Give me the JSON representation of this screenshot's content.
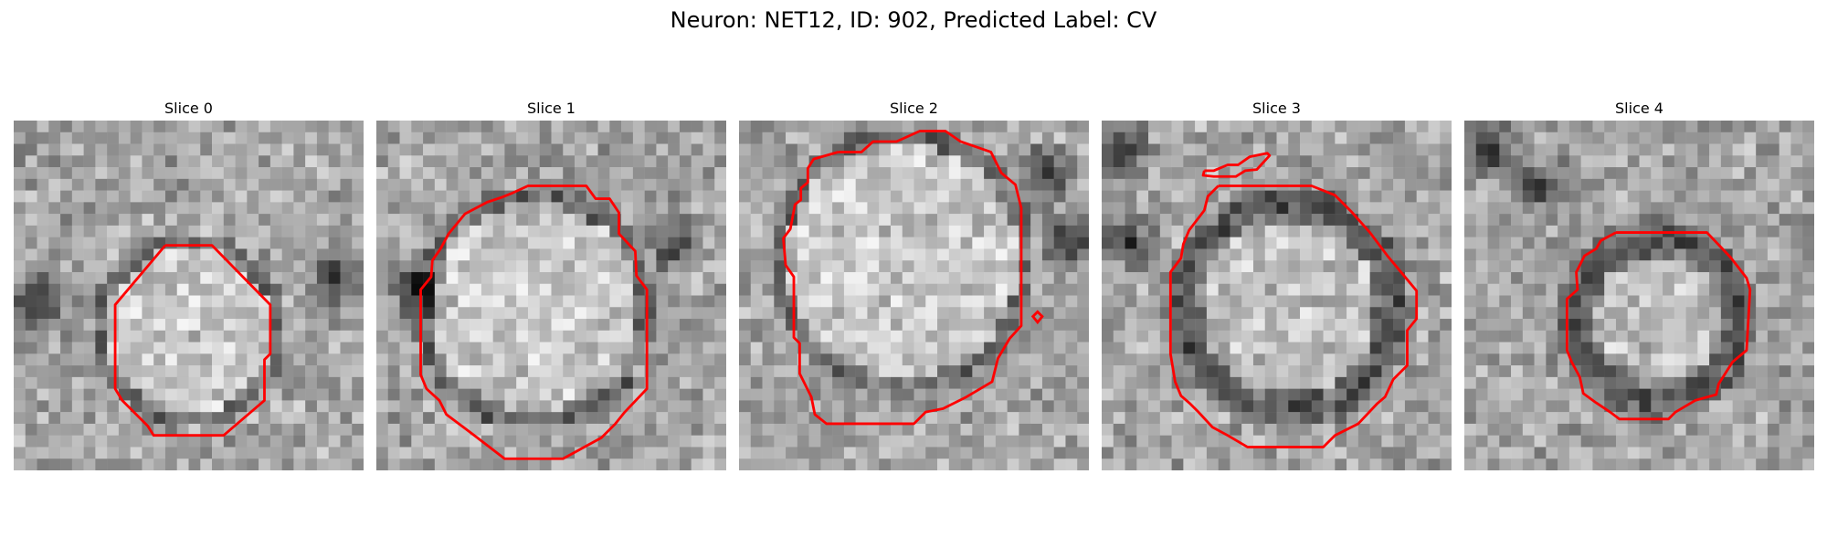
{
  "title": "Neuron: NET12, ID: 902, Predicted Label: CV",
  "panels": [
    {
      "title": "Slice 0"
    },
    {
      "title": "Slice 1"
    },
    {
      "title": "Slice 2"
    },
    {
      "title": "Slice 3"
    },
    {
      "title": "Slice 4"
    }
  ],
  "contour_color": "#ff0000",
  "image_colormap": "grayscale"
}
